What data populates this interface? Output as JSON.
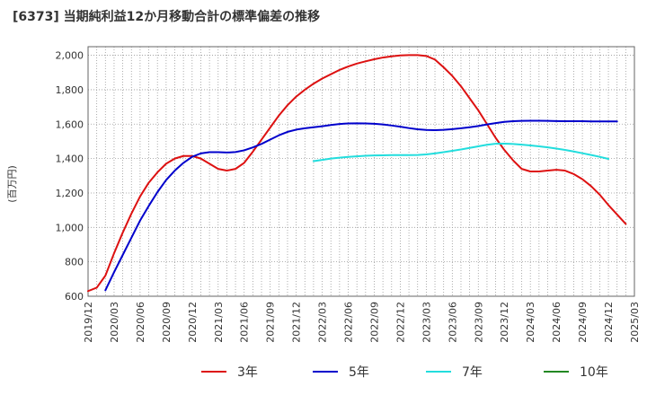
{
  "chart_data": {
    "type": "line",
    "title": "[6373]  当期純利益12か月移動合計の標準偏差の推移",
    "ylabel": "(百万円)",
    "xlabel": "",
    "ylim": [
      600,
      2050
    ],
    "yticks": [
      600,
      800,
      1000,
      1200,
      1400,
      1600,
      1800,
      2000
    ],
    "ytick_labels": [
      "600",
      "800",
      "1,000",
      "1,200",
      "1,400",
      "1,600",
      "1,800",
      "2,000"
    ],
    "x_start": "2019/12",
    "x_end": "2025/03",
    "xtick_labels": [
      "2019/12",
      "2020/03",
      "2020/06",
      "2020/09",
      "2020/12",
      "2021/03",
      "2021/06",
      "2021/09",
      "2021/12",
      "2022/03",
      "2022/06",
      "2022/09",
      "2022/12",
      "2023/03",
      "2023/06",
      "2023/09",
      "2023/12",
      "2024/03",
      "2024/06",
      "2024/09",
      "2024/12",
      "2025/03"
    ],
    "grid": true,
    "legend_position": "bottom",
    "series": [
      {
        "name": "3年",
        "color": "#dd1111",
        "start": "2019/12",
        "values": [
          630,
          650,
          720,
          850,
          970,
          1080,
          1180,
          1260,
          1320,
          1370,
          1400,
          1415,
          1415,
          1400,
          1370,
          1340,
          1330,
          1340,
          1375,
          1440,
          1510,
          1580,
          1650,
          1710,
          1760,
          1800,
          1835,
          1865,
          1890,
          1915,
          1935,
          1952,
          1965,
          1977,
          1987,
          1994,
          1999,
          2001,
          2001,
          1996,
          1975,
          1930,
          1880,
          1820,
          1750,
          1680,
          1600,
          1520,
          1450,
          1390,
          1340,
          1325,
          1325,
          1330,
          1335,
          1330,
          1310,
          1280,
          1240,
          1190,
          1130,
          1075,
          1020
        ]
      },
      {
        "name": "5年",
        "color": "#0000cc",
        "start": "2020/02",
        "values": [
          635,
          740,
          840,
          940,
          1040,
          1125,
          1205,
          1275,
          1330,
          1375,
          1410,
          1430,
          1437,
          1437,
          1435,
          1438,
          1448,
          1465,
          1485,
          1510,
          1535,
          1555,
          1568,
          1576,
          1582,
          1588,
          1595,
          1601,
          1604,
          1605,
          1604,
          1602,
          1598,
          1592,
          1585,
          1577,
          1570,
          1566,
          1565,
          1567,
          1571,
          1576,
          1582,
          1589,
          1598,
          1606,
          1613,
          1617,
          1619,
          1620,
          1620,
          1619,
          1618,
          1617,
          1617,
          1617,
          1616,
          1616,
          1616,
          1616
        ]
      },
      {
        "name": "7年",
        "color": "#22dddd",
        "start": "2022/02",
        "values": [
          1385,
          1392,
          1400,
          1405,
          1410,
          1413,
          1416,
          1418,
          1419,
          1420,
          1420,
          1420,
          1421,
          1424,
          1430,
          1437,
          1445,
          1453,
          1462,
          1471,
          1480,
          1486,
          1487,
          1485,
          1481,
          1476,
          1471,
          1465,
          1458,
          1450,
          1441,
          1431,
          1421,
          1410,
          1398
        ]
      },
      {
        "name": "10年",
        "color": "#228822",
        "start": "2025/03",
        "values": []
      }
    ]
  }
}
